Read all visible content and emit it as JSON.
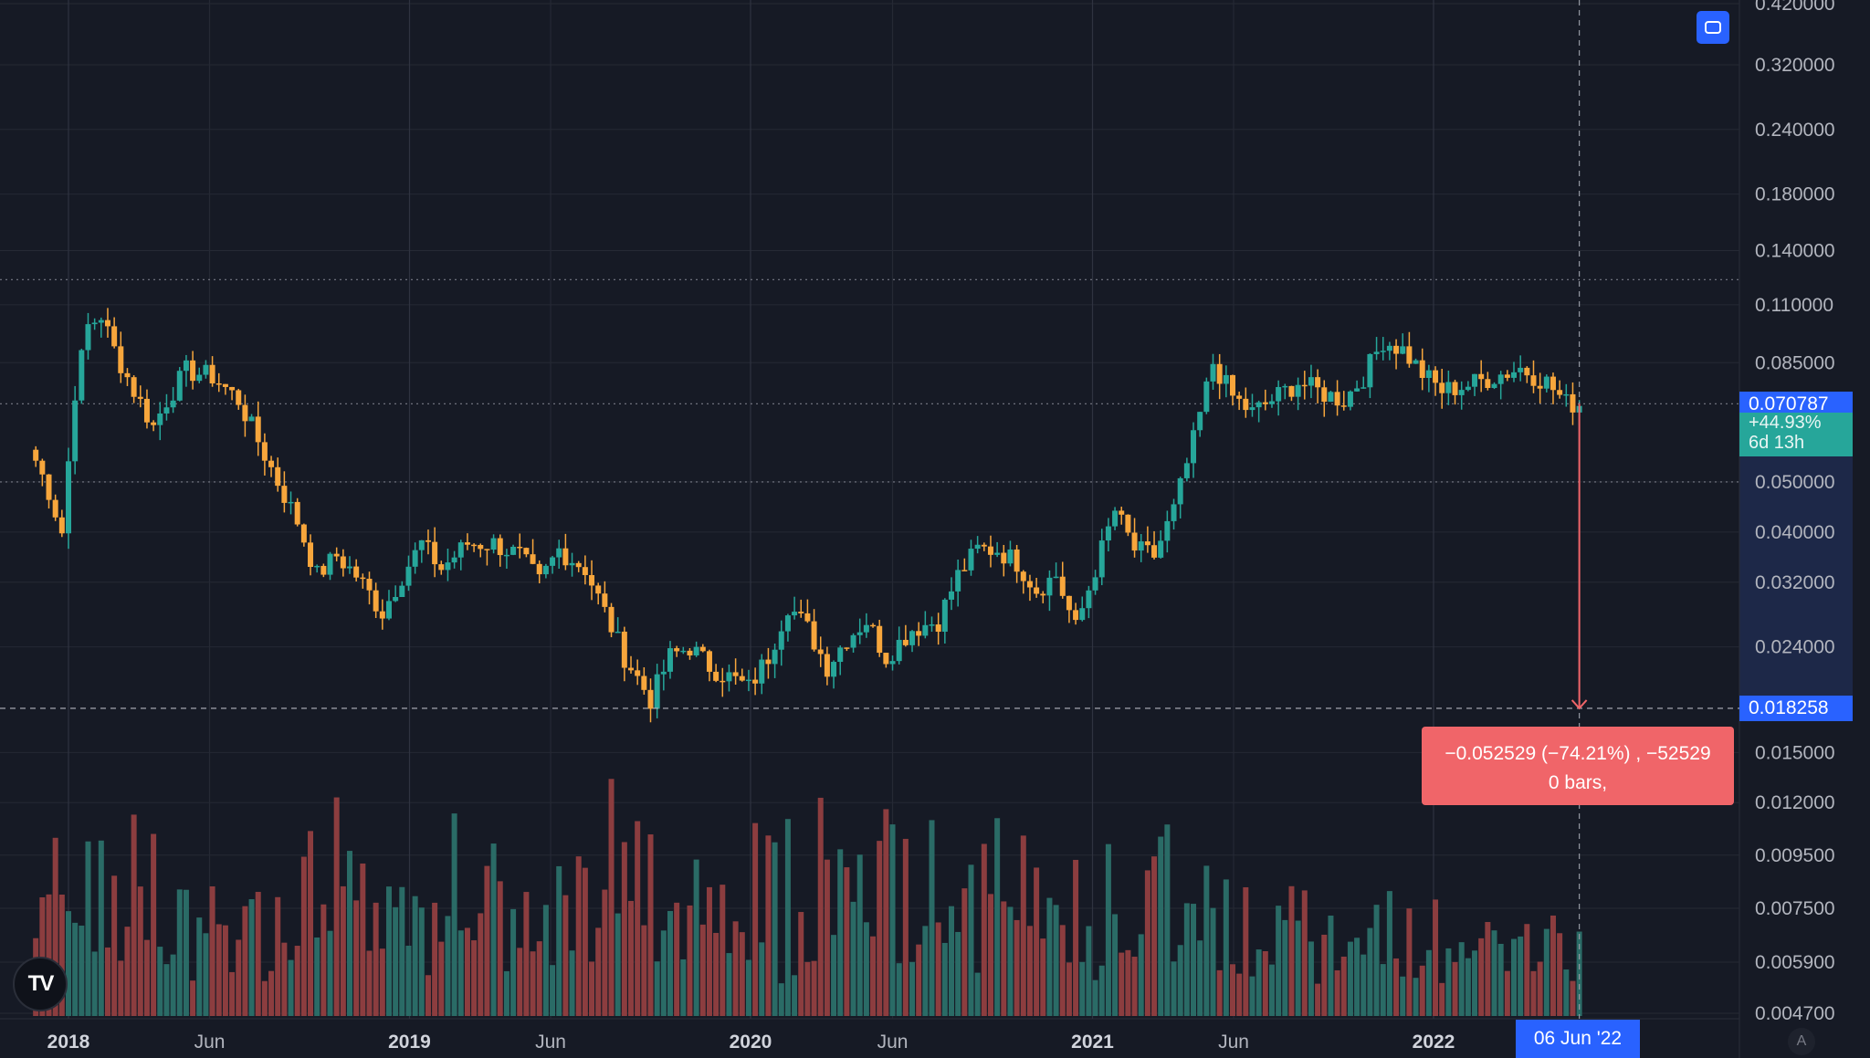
{
  "chart_data": {
    "type": "candlestick",
    "scale": "log",
    "title": "",
    "xlabel": "",
    "ylabel": "",
    "grid": true,
    "legend": "none",
    "x_range": [
      "2017-12-01",
      "2022-06-27"
    ],
    "ylim": [
      0.0047,
      0.42
    ],
    "y_ticks": [
      "0.420000",
      "0.320000",
      "0.240000",
      "0.180000",
      "0.140000",
      "0.110000",
      "0.085000",
      "0.050000",
      "0.040000",
      "0.032000",
      "0.024000",
      "0.015000",
      "0.012000",
      "0.009500",
      "0.007500",
      "0.005900",
      "0.004700"
    ],
    "x_ticks": [
      {
        "label": "2018",
        "date": "2018-01-01",
        "major": true
      },
      {
        "label": "Jun",
        "date": "2018-06-01",
        "major": false
      },
      {
        "label": "2019",
        "date": "2019-01-01",
        "major": true
      },
      {
        "label": "Jun",
        "date": "2019-06-01",
        "major": false
      },
      {
        "label": "2020",
        "date": "2020-01-01",
        "major": true
      },
      {
        "label": "Jun",
        "date": "2020-06-01",
        "major": false
      },
      {
        "label": "2021",
        "date": "2021-01-01",
        "major": true
      },
      {
        "label": "Jun",
        "date": "2021-06-01",
        "major": false
      },
      {
        "label": "2022",
        "date": "2022-01-01",
        "major": true
      }
    ],
    "price_anchors": [
      [
        "2017-11-27",
        0.055
      ],
      [
        "2017-12-11",
        0.048
      ],
      [
        "2017-12-25",
        0.04
      ],
      [
        "2018-01-08",
        0.075
      ],
      [
        "2018-01-22",
        0.1
      ],
      [
        "2018-02-05",
        0.105
      ],
      [
        "2018-02-19",
        0.09
      ],
      [
        "2018-03-12",
        0.075
      ],
      [
        "2018-04-02",
        0.064
      ],
      [
        "2018-04-16",
        0.072
      ],
      [
        "2018-05-07",
        0.082
      ],
      [
        "2018-06-04",
        0.08
      ],
      [
        "2018-07-02",
        0.072
      ],
      [
        "2018-07-23",
        0.06
      ],
      [
        "2018-08-13",
        0.05
      ],
      [
        "2018-09-03",
        0.042
      ],
      [
        "2018-09-24",
        0.033
      ],
      [
        "2018-10-15",
        0.036
      ],
      [
        "2018-11-05",
        0.033
      ],
      [
        "2018-12-03",
        0.028
      ],
      [
        "2018-12-24",
        0.033
      ],
      [
        "2019-01-14",
        0.038
      ],
      [
        "2019-02-04",
        0.034
      ],
      [
        "2019-03-04",
        0.038
      ],
      [
        "2019-04-01",
        0.038
      ],
      [
        "2019-04-29",
        0.036
      ],
      [
        "2019-05-20",
        0.032
      ],
      [
        "2019-06-10",
        0.037
      ],
      [
        "2019-07-08",
        0.034
      ],
      [
        "2019-07-29",
        0.028
      ],
      [
        "2019-08-19",
        0.023
      ],
      [
        "2019-09-16",
        0.019
      ],
      [
        "2019-10-07",
        0.023
      ],
      [
        "2019-10-28",
        0.024
      ],
      [
        "2019-11-18",
        0.022
      ],
      [
        "2019-12-09",
        0.021
      ],
      [
        "2019-12-30",
        0.02
      ],
      [
        "2020-01-20",
        0.023
      ],
      [
        "2020-02-10",
        0.029
      ],
      [
        "2020-03-02",
        0.026
      ],
      [
        "2020-03-23",
        0.022
      ],
      [
        "2020-04-13",
        0.025
      ],
      [
        "2020-05-04",
        0.027
      ],
      [
        "2020-05-25",
        0.023
      ],
      [
        "2020-06-22",
        0.026
      ],
      [
        "2020-07-20",
        0.027
      ],
      [
        "2020-08-10",
        0.033
      ],
      [
        "2020-08-31",
        0.037
      ],
      [
        "2020-09-21",
        0.037
      ],
      [
        "2020-10-12",
        0.035
      ],
      [
        "2020-11-02",
        0.031
      ],
      [
        "2020-11-23",
        0.033
      ],
      [
        "2020-12-14",
        0.026
      ],
      [
        "2021-01-04",
        0.034
      ],
      [
        "2021-01-25",
        0.044
      ],
      [
        "2021-02-15",
        0.037
      ],
      [
        "2021-03-08",
        0.036
      ],
      [
        "2021-03-29",
        0.044
      ],
      [
        "2021-04-19",
        0.06
      ],
      [
        "2021-05-10",
        0.085
      ],
      [
        "2021-05-31",
        0.073
      ],
      [
        "2021-06-21",
        0.068
      ],
      [
        "2021-07-12",
        0.072
      ],
      [
        "2021-08-09",
        0.078
      ],
      [
        "2021-09-06",
        0.074
      ],
      [
        "2021-09-27",
        0.072
      ],
      [
        "2021-10-18",
        0.08
      ],
      [
        "2021-11-08",
        0.094
      ],
      [
        "2021-11-29",
        0.09
      ],
      [
        "2021-12-20",
        0.081
      ],
      [
        "2022-01-10",
        0.075
      ],
      [
        "2022-02-07",
        0.077
      ],
      [
        "2022-03-07",
        0.08
      ],
      [
        "2022-04-04",
        0.083
      ],
      [
        "2022-05-02",
        0.078
      ],
      [
        "2022-05-23",
        0.071
      ],
      [
        "2022-06-06",
        0.070787
      ]
    ],
    "horizontal_levels": [
      0.123,
      0.0708,
      0.05
    ],
    "last_price": "0.070787",
    "change_percent": "+44.93%",
    "countdown": "6d 13h",
    "cursor_price": "0.018258",
    "cursor_date": "06 Jun '22",
    "measure": {
      "line1": "−0.052529 (−74.21%) , −52529",
      "line2": "0 bars,"
    },
    "colors": {
      "up": "#26a69a",
      "down": "#f7a63c",
      "volume_up": "#2a6b66",
      "volume_down": "#8c3d3f",
      "measure": "#f06569",
      "accent": "#2962ff",
      "background": "#161a25",
      "grid": "#252934"
    }
  },
  "badges": {
    "logo": "TV",
    "auto": "A"
  }
}
